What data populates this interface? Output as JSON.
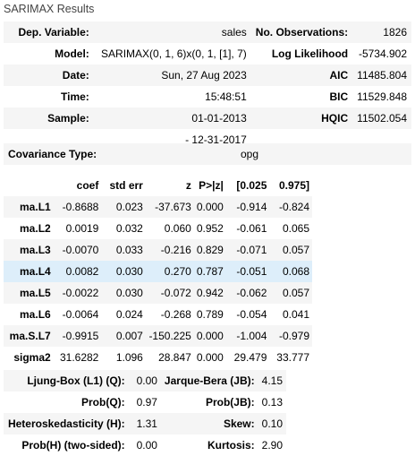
{
  "caption": "SARIMAX Results",
  "summary": {
    "rows": [
      {
        "l1": "Dep. Variable:",
        "v1": "sales",
        "l2": "No. Observations:",
        "v2": "1826"
      },
      {
        "l1": "Model:",
        "v1": "SARIMAX(0, 1, 6)x(0, 1, [1], 7)",
        "l2": "Log Likelihood",
        "v2": "-5734.902"
      },
      {
        "l1": "Date:",
        "v1": "Sun, 27 Aug 2023",
        "l2": "AIC",
        "v2": "11485.804"
      },
      {
        "l1": "Time:",
        "v1": "15:48:51",
        "l2": "BIC",
        "v2": "11529.848"
      },
      {
        "l1": "Sample:",
        "v1": "01-01-2013",
        "l2": "HQIC",
        "v2": "11502.054"
      },
      {
        "l1": "",
        "v1": "- 12-31-2017",
        "l2": "",
        "v2": ""
      }
    ]
  },
  "covariance": {
    "label": "Covariance Type:",
    "value": "opg"
  },
  "coef_table": {
    "headers": [
      "",
      "coef",
      "std err",
      "z",
      "P>|z|",
      "[0.025",
      "0.975]"
    ],
    "rows": [
      [
        "ma.L1",
        "-0.8688",
        "0.023",
        "-37.673",
        "0.000",
        "-0.914",
        "-0.824"
      ],
      [
        "ma.L2",
        "0.0019",
        "0.032",
        "0.060",
        "0.952",
        "-0.061",
        "0.065"
      ],
      [
        "ma.L3",
        "-0.0070",
        "0.033",
        "-0.216",
        "0.829",
        "-0.071",
        "0.057"
      ],
      [
        "ma.L4",
        "0.0082",
        "0.030",
        "0.270",
        "0.787",
        "-0.051",
        "0.068"
      ],
      [
        "ma.L5",
        "-0.0022",
        "0.030",
        "-0.072",
        "0.942",
        "-0.062",
        "0.057"
      ],
      [
        "ma.L6",
        "-0.0064",
        "0.024",
        "-0.268",
        "0.789",
        "-0.054",
        "0.041"
      ],
      [
        "ma.S.L7",
        "-0.9915",
        "0.007",
        "-150.225",
        "0.000",
        "-1.004",
        "-0.979"
      ],
      [
        "sigma2",
        "31.6282",
        "1.096",
        "28.847",
        "0.000",
        "29.479",
        "33.777"
      ]
    ],
    "highlighted_row": 3,
    "highlight_color": "#ddeefa"
  },
  "diagnostics": {
    "rows": [
      {
        "l1": "Ljung-Box (L1) (Q):",
        "v1": "0.00",
        "l2": "Jarque-Bera (JB):",
        "v2": "4.15"
      },
      {
        "l1": "Prob(Q):",
        "v1": "0.97",
        "l2": "Prob(JB):",
        "v2": "0.13"
      },
      {
        "l1": "Heteroskedasticity (H):",
        "v1": "1.31",
        "l2": "Skew:",
        "v2": "0.10"
      },
      {
        "l1": "Prob(H) (two-sided):",
        "v1": "0.00",
        "l2": "Kurtosis:",
        "v2": "2.90"
      }
    ]
  }
}
